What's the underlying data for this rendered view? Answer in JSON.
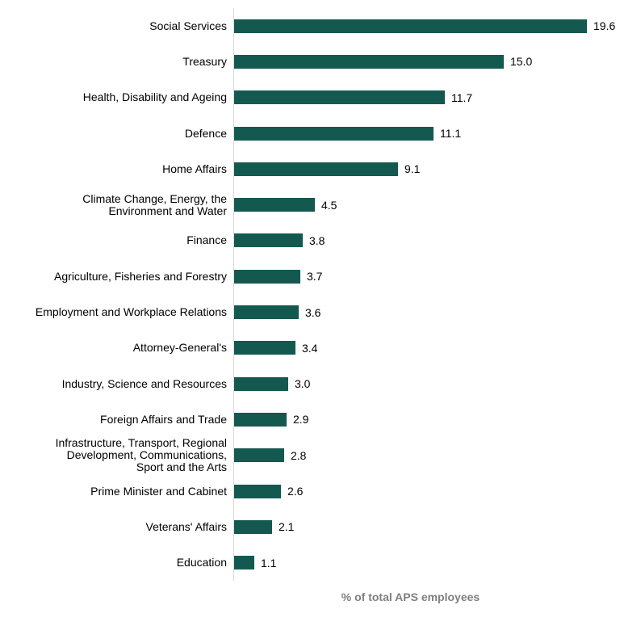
{
  "chart": {
    "bar_color": "#14594F",
    "axis_line_color": "#D9D9D9",
    "axis_title_color": "#7F7F7F",
    "text_color": "#000000"
  },
  "chart_data": {
    "type": "bar",
    "orientation": "horizontal",
    "title": "",
    "xlabel": "% of total APS employees",
    "ylabel": "",
    "xlim": [
      0,
      21.5
    ],
    "grid": false,
    "legend": false,
    "categories": [
      "Social Services",
      "Treasury",
      "Health, Disability and Ageing",
      "Defence",
      "Home Affairs",
      "Climate Change, Energy, the\nEnvironment and Water",
      "Finance",
      "Agriculture, Fisheries and Forestry",
      "Employment and Workplace Relations",
      "Attorney-General's",
      "Industry, Science and Resources",
      "Foreign Affairs and Trade",
      "Infrastructure, Transport, Regional\nDevelopment, Communications,\nSport and the Arts",
      "Prime Minister and Cabinet",
      "Veterans' Affairs",
      "Education"
    ],
    "values": [
      19.6,
      15.0,
      11.7,
      11.1,
      9.1,
      4.5,
      3.8,
      3.7,
      3.6,
      3.4,
      3.0,
      2.9,
      2.8,
      2.6,
      2.1,
      1.1
    ],
    "value_labels": [
      "19.6",
      "15.0",
      "11.7",
      "11.1",
      "9.1",
      "4.5",
      "3.8",
      "3.7",
      "3.6",
      "3.4",
      "3.0",
      "2.9",
      "2.8",
      "2.6",
      "2.1",
      "1.1"
    ]
  }
}
